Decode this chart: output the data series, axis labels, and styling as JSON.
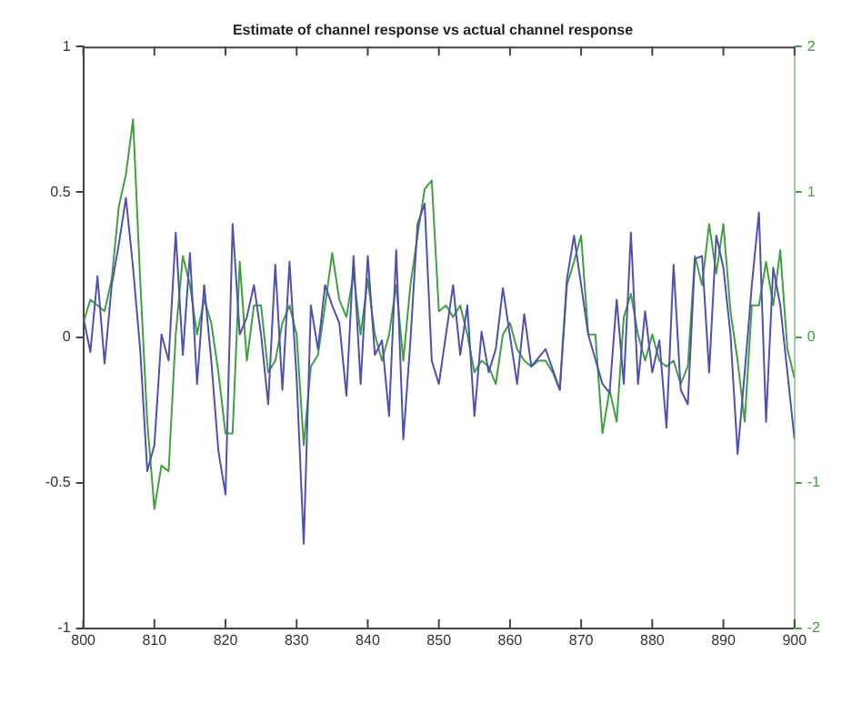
{
  "chart_data": {
    "type": "line",
    "title": "Estimate of channel response vs actual channel response",
    "x": [
      800,
      801,
      802,
      803,
      804,
      805,
      806,
      807,
      808,
      809,
      810,
      811,
      812,
      813,
      814,
      815,
      816,
      817,
      818,
      819,
      820,
      821,
      822,
      823,
      824,
      825,
      826,
      827,
      828,
      829,
      830,
      831,
      832,
      833,
      834,
      835,
      836,
      837,
      838,
      839,
      840,
      841,
      842,
      843,
      844,
      845,
      846,
      847,
      848,
      849,
      850,
      851,
      852,
      853,
      854,
      855,
      856,
      857,
      858,
      859,
      860,
      861,
      862,
      863,
      864,
      865,
      866,
      867,
      868,
      869,
      870,
      871,
      872,
      873,
      874,
      875,
      876,
      877,
      878,
      879,
      880,
      881,
      882,
      883,
      884,
      885,
      886,
      887,
      888,
      889,
      890,
      891,
      892,
      893,
      894,
      895,
      896,
      897,
      898,
      899,
      900
    ],
    "series": [
      {
        "color": "#5050b0",
        "x": [
          800,
          801,
          802,
          803,
          804,
          805,
          806,
          807,
          808,
          809,
          810,
          811,
          812,
          813,
          814,
          815,
          816,
          817,
          818,
          819,
          820,
          821,
          822,
          823,
          824,
          825,
          826,
          827,
          828,
          829,
          830,
          831,
          832,
          833,
          834,
          835,
          836,
          837,
          838,
          839,
          840,
          841,
          842,
          843,
          844,
          845,
          846,
          847,
          848,
          849,
          850,
          852,
          853,
          854,
          855,
          856,
          857,
          858,
          859,
          861,
          862,
          863,
          865,
          867,
          868,
          869,
          870,
          871,
          873,
          874,
          875,
          876,
          877,
          878,
          879,
          880,
          881,
          882,
          883,
          884,
          885,
          886,
          887,
          888,
          889,
          890,
          891,
          892,
          893,
          894,
          895,
          896,
          897,
          898,
          899,
          900
        ],
        "values": [
          0.07,
          -0.05,
          0.21,
          -0.09,
          0.18,
          0.32,
          0.48,
          0.24,
          -0.04,
          -0.46,
          -0.37,
          0.01,
          -0.08,
          0.36,
          -0.06,
          0.29,
          -0.16,
          0.18,
          -0.08,
          -0.39,
          -0.54,
          0.39,
          0.01,
          0.07,
          0.18,
          0.01,
          -0.23,
          0.25,
          -0.18,
          0.26,
          -0.14,
          -0.71,
          0.11,
          -0.04,
          0.18,
          0.11,
          0.05,
          -0.2,
          0.28,
          -0.16,
          0.28,
          -0.06,
          -0.01,
          -0.27,
          0.3,
          -0.35,
          -0.01,
          0.39,
          0.46,
          -0.08,
          -0.16,
          0.18,
          -0.06,
          0.11,
          -0.27,
          0.02,
          -0.12,
          -0.04,
          0.17,
          -0.16,
          0.08,
          -0.1,
          -0.04,
          -0.18,
          0.2,
          0.35,
          0.18,
          0.01,
          -0.16,
          -0.19,
          0.13,
          -0.16,
          0.36,
          -0.16,
          0.09,
          -0.12,
          -0.01,
          -0.31,
          0.25,
          -0.18,
          -0.23,
          0.27,
          0.28,
          -0.12,
          0.35,
          0.24,
          0.01,
          -0.4,
          -0.12,
          0.18,
          0.43,
          -0.29,
          0.24,
          0.11,
          -0.12,
          -0.35
        ]
      },
      {
        "color": "#40a040",
        "axis": "y2",
        "values": [
          0.1,
          0.26,
          0.22,
          0.18,
          0.4,
          0.9,
          1.12,
          1.5,
          0.4,
          -0.58,
          -1.18,
          -0.88,
          -0.92,
          0.02,
          0.56,
          0.36,
          0.02,
          0.26,
          0.1,
          -0.24,
          -0.66,
          -0.66,
          0.52,
          -0.16,
          0.22,
          0.22,
          -0.24,
          -0.16,
          0.1,
          0.22,
          0.02,
          -0.74,
          -0.2,
          -0.12,
          0.22,
          0.58,
          0.26,
          0.14,
          0.44,
          0.02,
          0.4,
          0.02,
          -0.16,
          0.02,
          0.36,
          -0.16,
          0.36,
          0.7,
          1.02,
          1.08,
          0.18,
          0.22,
          0.14,
          0.22,
          0.02,
          -0.24,
          -0.16,
          -0.2,
          -0.32,
          0.02,
          0.1,
          -0.08,
          -0.16,
          -0.2,
          -0.16,
          -0.16,
          -0.24,
          -0.36,
          0.36,
          0.52,
          0.7,
          0.02,
          0.02,
          -0.66,
          -0.36,
          -0.58,
          0.14,
          0.3,
          0.02,
          -0.16,
          0.02,
          -0.16,
          -0.2,
          -0.16,
          -0.32,
          -0.2,
          0.56,
          0.36,
          0.78,
          0.44,
          0.78,
          0.18,
          -0.16,
          -0.58,
          0.22,
          0.22,
          0.52,
          0.22,
          0.6,
          -0.08,
          -0.28
        ]
      }
    ],
    "xlim": [
      800,
      900
    ],
    "xticks": [
      800,
      810,
      820,
      830,
      840,
      850,
      860,
      870,
      880,
      890,
      900
    ],
    "ylim": [
      -1,
      1
    ],
    "yticks": [
      -1,
      -0.5,
      0,
      0.5,
      1
    ],
    "y2lim": [
      -2,
      2
    ],
    "y2ticks": [
      -2,
      -1,
      0,
      1,
      2
    ],
    "grid": false,
    "legend": false,
    "marker": "none",
    "line_style": "solid"
  }
}
